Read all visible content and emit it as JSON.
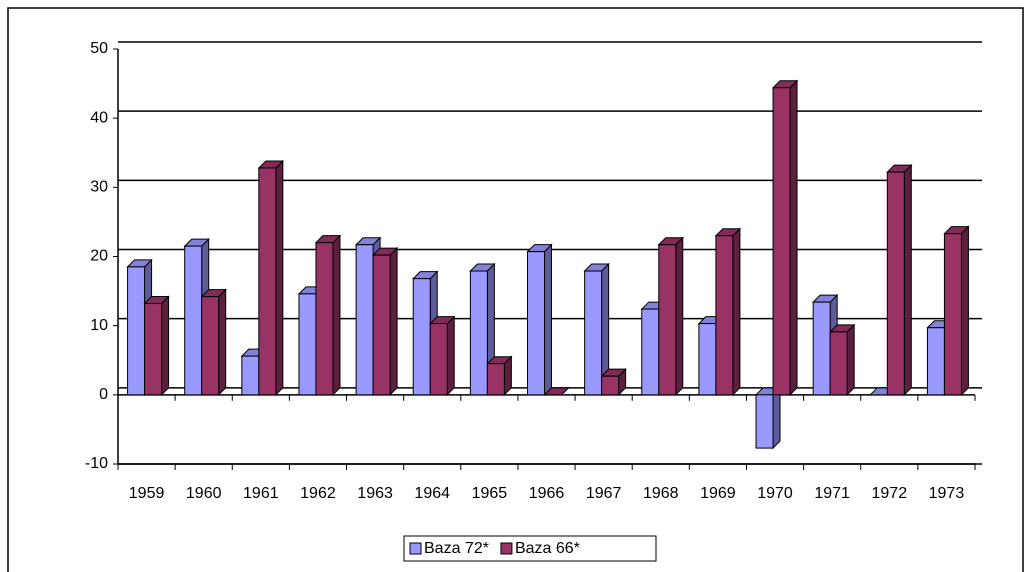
{
  "chart_data": {
    "type": "bar3d",
    "categories": [
      "1959",
      "1960",
      "1961",
      "1962",
      "1963",
      "1964",
      "1965",
      "1966",
      "1967",
      "1968",
      "1969",
      "1970",
      "1971",
      "1972",
      "1973"
    ],
    "series": [
      {
        "name": "Baza 72*",
        "color": "#9999ff",
        "values": [
          18.5,
          21.5,
          5.6,
          14.6,
          21.7,
          16.8,
          17.9,
          20.7,
          17.9,
          12.4,
          10.3,
          -7.7,
          13.4,
          0,
          9.7
        ]
      },
      {
        "name": "Baza 66*",
        "color": "#993366",
        "values": [
          13.2,
          14.2,
          32.8,
          22,
          20.2,
          10.3,
          4.5,
          0,
          2.7,
          21.7,
          23,
          44.4,
          9.1,
          32.2,
          23.3
        ]
      }
    ],
    "ylim": [
      -10,
      50
    ],
    "yticks": [
      -10,
      0,
      10,
      20,
      30,
      40,
      50
    ],
    "grid": true,
    "legend": "bottom"
  }
}
